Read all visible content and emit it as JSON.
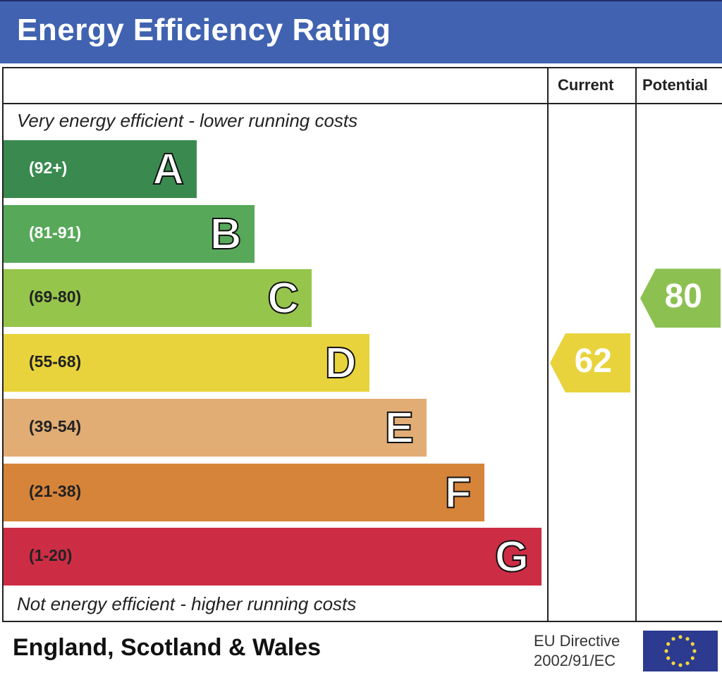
{
  "title": "Energy Efficiency Rating",
  "columns": {
    "current": "Current",
    "potential": "Potential"
  },
  "top_note": "Very energy efficient - lower running costs",
  "bottom_note": "Not energy efficient - higher running costs",
  "footer": {
    "region": "England, Scotland & Wales",
    "directive_line1": "EU Directive",
    "directive_line2": "2002/91/EC"
  },
  "chart_data": {
    "type": "bar",
    "bands": [
      {
        "letter": "A",
        "range": "(92+)",
        "color": "#3a8a4f",
        "label_color": "#ffffff"
      },
      {
        "letter": "B",
        "range": "(81-91)",
        "color": "#58a85a",
        "label_color": "#ffffff"
      },
      {
        "letter": "C",
        "range": "(69-80)",
        "color": "#96c54b",
        "label_color": "#222222"
      },
      {
        "letter": "D",
        "range": "(55-68)",
        "color": "#e8d33c",
        "label_color": "#222222"
      },
      {
        "letter": "E",
        "range": "(39-54)",
        "color": "#e1ad74",
        "label_color": "#222222"
      },
      {
        "letter": "F",
        "range": "(21-38)",
        "color": "#d6843a",
        "label_color": "#222222"
      },
      {
        "letter": "G",
        "range": "(1-20)",
        "color": "#cc2d45",
        "label_color": "#222222"
      }
    ],
    "current": {
      "value": 62,
      "band": "D",
      "color": "#e8d33c"
    },
    "potential": {
      "value": 80,
      "band": "C",
      "color": "#8cc152"
    }
  }
}
